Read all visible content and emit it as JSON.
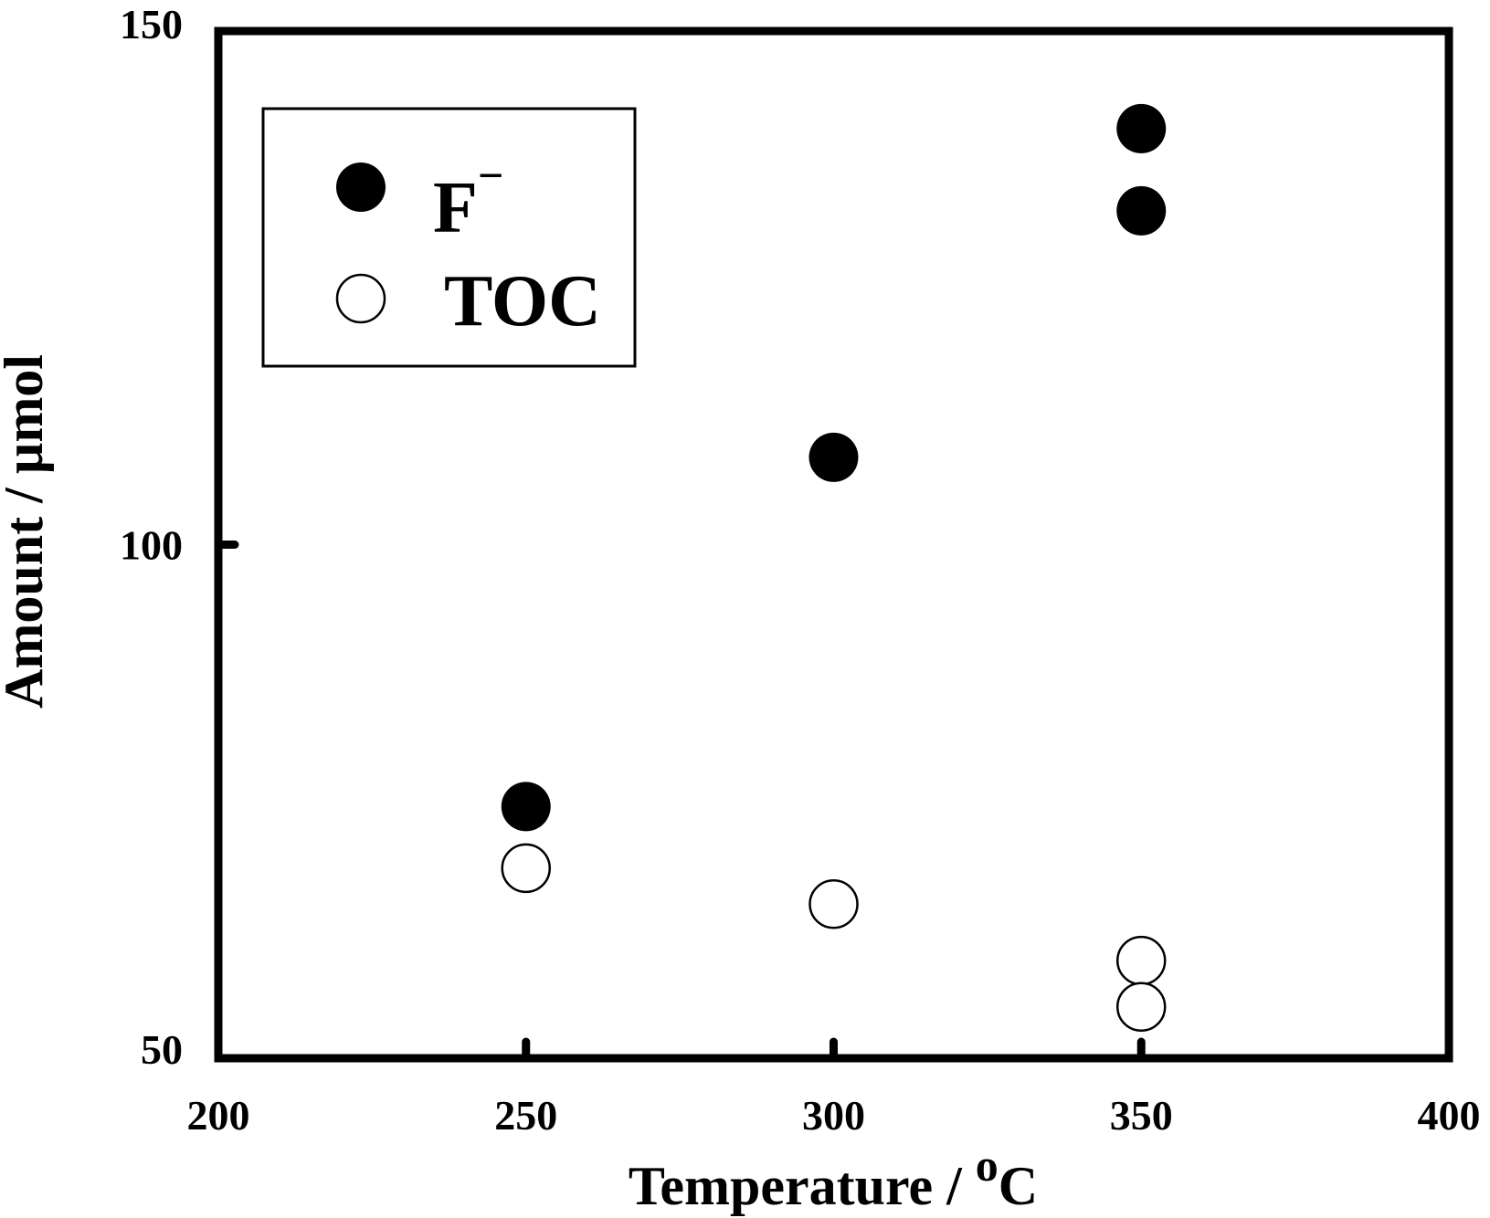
{
  "chart_data": {
    "type": "scatter",
    "xlabel": "Temperature / ",
    "xlabel_sup": "o",
    "xlabel_unit": "C",
    "ylabel": "Amount / µmol",
    "xlim": [
      200,
      400
    ],
    "ylim": [
      50,
      150
    ],
    "x_ticks": [
      "200",
      "250",
      "300",
      "350",
      "400"
    ],
    "y_ticks": [
      "50",
      "100",
      "150"
    ],
    "grid": false,
    "legend_position": "top-left",
    "series": [
      {
        "name": "F",
        "name_sup": "−",
        "marker": "filled-circle",
        "points": [
          {
            "x": 250,
            "y": 74.5
          },
          {
            "x": 300,
            "y": 108.5
          },
          {
            "x": 350,
            "y": 140.5
          },
          {
            "x": 350,
            "y": 132.5
          }
        ]
      },
      {
        "name": "TOC",
        "marker": "open-circle",
        "points": [
          {
            "x": 250,
            "y": 68.5
          },
          {
            "x": 300,
            "y": 65
          },
          {
            "x": 350,
            "y": 59.5
          },
          {
            "x": 350,
            "y": 55
          }
        ]
      }
    ]
  },
  "colors": {
    "ink": "#000000",
    "background": "#ffffff"
  }
}
